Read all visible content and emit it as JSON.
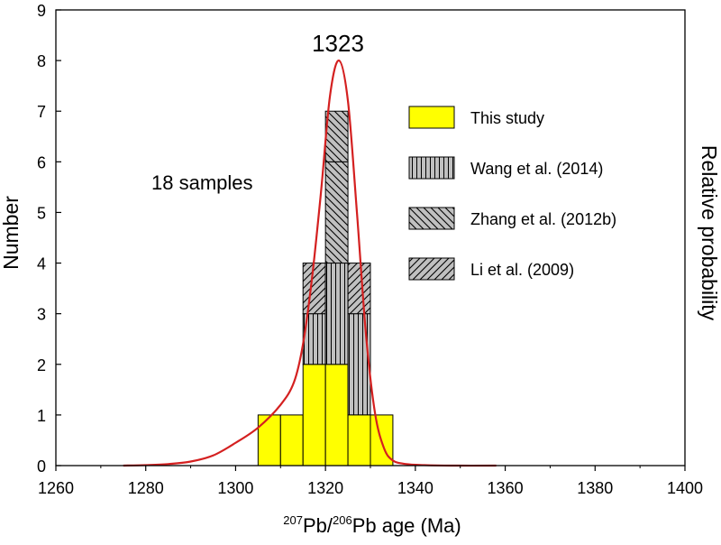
{
  "chart_data": {
    "type": "bar",
    "xlabel": {
      "sup1": "207",
      "part1": "Pb/",
      "sup2": "206",
      "part2": "Pb age (Ma)"
    },
    "ylabel": "Number",
    "y2label": "Relative probability",
    "xlim": [
      1260,
      1400
    ],
    "ylim": [
      0,
      9
    ],
    "xticks": [
      1260,
      1280,
      1300,
      1320,
      1340,
      1360,
      1380,
      1400
    ],
    "yticks": [
      0,
      1,
      2,
      3,
      4,
      5,
      6,
      7,
      8,
      9
    ],
    "annotations": {
      "peak_label": "1323",
      "peak_x": 1323,
      "sample_count": "18 samples"
    },
    "legend_position": "top-right",
    "series": [
      {
        "name": "This study",
        "fill": "#ffff00",
        "pattern": "solid"
      },
      {
        "name": "Wang et al. (2014)",
        "fill": "#c0c0c0",
        "pattern": "vertical"
      },
      {
        "name": "Zhang et al. (2012b)",
        "fill": "#c0c0c0",
        "pattern": "backslash"
      },
      {
        "name": "Li et al. (2009)",
        "fill": "#c0c0c0",
        "pattern": "slash"
      }
    ],
    "boxes": [
      {
        "series": 0,
        "x0": 1305,
        "x1": 1310,
        "y0": 0,
        "y1": 1
      },
      {
        "series": 0,
        "x0": 1310,
        "x1": 1315,
        "y0": 0,
        "y1": 1
      },
      {
        "series": 0,
        "x0": 1315,
        "x1": 1320,
        "y0": 0,
        "y1": 2
      },
      {
        "series": 1,
        "x0": 1315,
        "x1": 1320,
        "y0": 2,
        "y1": 3
      },
      {
        "series": 3,
        "x0": 1315,
        "x1": 1320,
        "y0": 3,
        "y1": 4
      },
      {
        "series": 0,
        "x0": 1320,
        "x1": 1325,
        "y0": 0,
        "y1": 2
      },
      {
        "series": 1,
        "x0": 1320,
        "x1": 1325,
        "y0": 2,
        "y1": 4
      },
      {
        "series": 2,
        "x0": 1320,
        "x1": 1325,
        "y0": 4,
        "y1": 6
      },
      {
        "series": 2,
        "x0": 1320,
        "x1": 1325,
        "y0": 6,
        "y1": 7
      },
      {
        "series": 1,
        "x0": 1325,
        "x1": 1330,
        "y0": 1,
        "y1": 3
      },
      {
        "series": 3,
        "x0": 1325,
        "x1": 1330,
        "y0": 3,
        "y1": 4
      },
      {
        "series": 0,
        "x0": 1325,
        "x1": 1330,
        "y0": 0,
        "y1": 1
      },
      {
        "series": 0,
        "x0": 1330,
        "x1": 1335,
        "y0": 0,
        "y1": 1
      }
    ],
    "curve": {
      "color": "#d42020",
      "points": [
        [
          1275,
          0.0
        ],
        [
          1280,
          0.01
        ],
        [
          1285,
          0.03
        ],
        [
          1290,
          0.08
        ],
        [
          1295,
          0.2
        ],
        [
          1300,
          0.45
        ],
        [
          1305,
          0.75
        ],
        [
          1310,
          1.2
        ],
        [
          1313,
          1.65
        ],
        [
          1315,
          2.4
        ],
        [
          1317,
          3.7
        ],
        [
          1319,
          5.4
        ],
        [
          1321,
          7.3
        ],
        [
          1323,
          8.0
        ],
        [
          1325,
          7.2
        ],
        [
          1327,
          5.0
        ],
        [
          1329,
          2.6
        ],
        [
          1331,
          1.05
        ],
        [
          1333,
          0.35
        ],
        [
          1335,
          0.1
        ],
        [
          1338,
          0.03
        ],
        [
          1342,
          0.01
        ],
        [
          1348,
          0.0
        ],
        [
          1358,
          0.0
        ]
      ]
    }
  }
}
